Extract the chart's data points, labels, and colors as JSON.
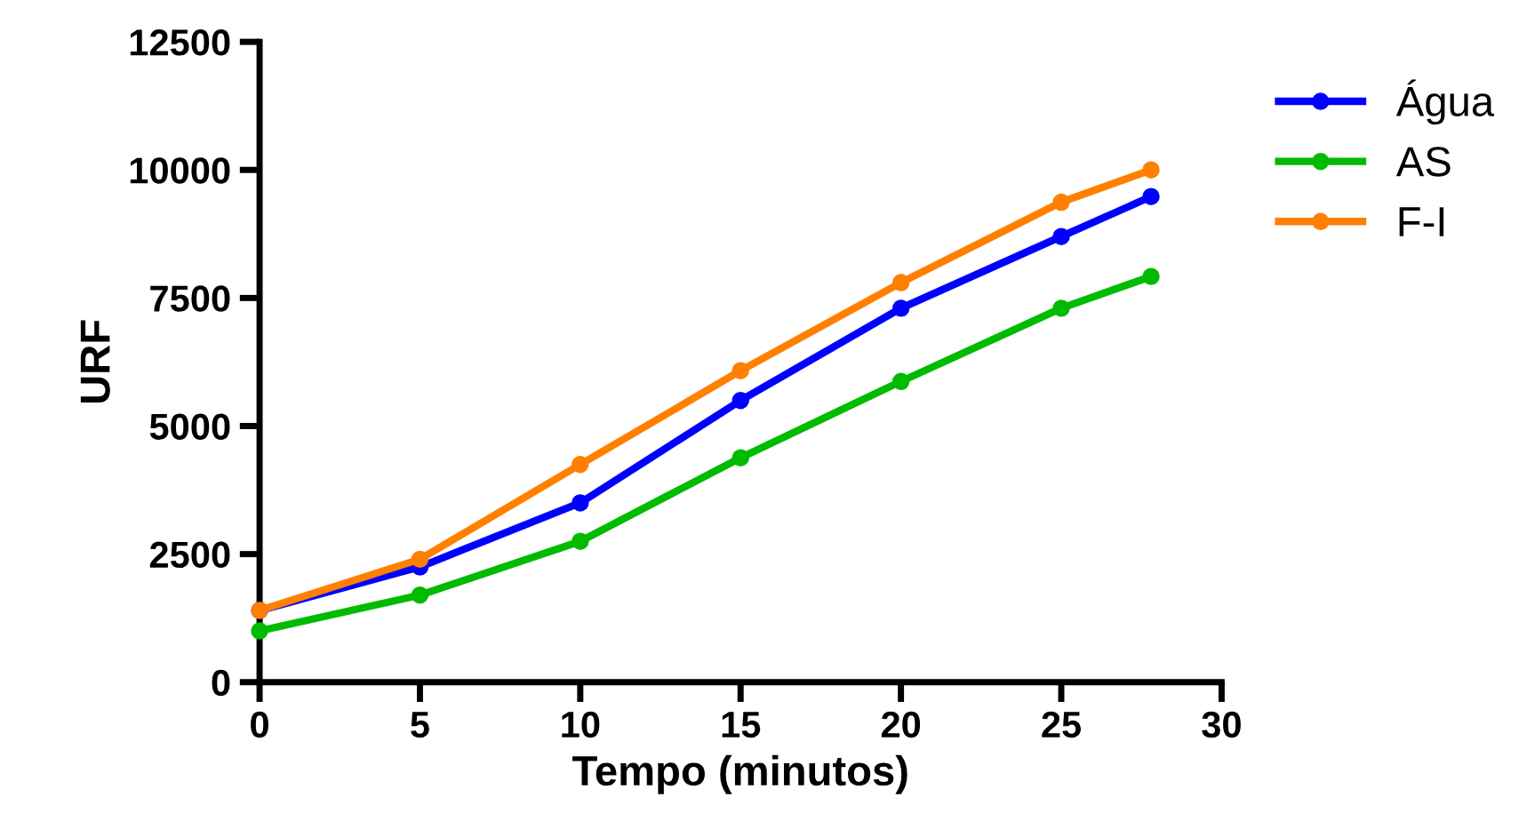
{
  "chart_data": {
    "type": "line",
    "xlabel": "Tempo (minutos)",
    "ylabel": "URF",
    "x": [
      0,
      5,
      10,
      15,
      20,
      25,
      27.8
    ],
    "series": [
      {
        "name": "Água",
        "color": "#0000ff",
        "values": [
          1400,
          2250,
          3500,
          5500,
          7300,
          8700,
          9480
        ]
      },
      {
        "name": "AS",
        "color": "#00bb00",
        "values": [
          1000,
          1700,
          2750,
          4380,
          5870,
          7300,
          7920
        ]
      },
      {
        "name": "F-I",
        "color": "#ff8000",
        "values": [
          1400,
          2400,
          4250,
          6080,
          7800,
          9370,
          10000
        ]
      }
    ],
    "xlim": [
      0,
      30
    ],
    "xticks": [
      0,
      5,
      10,
      15,
      20,
      25,
      30
    ],
    "ylim": [
      0,
      12500
    ],
    "yticks": [
      0,
      2500,
      5000,
      7500,
      10000,
      12500
    ],
    "grid": false,
    "legend": "top right",
    "marker": "circle",
    "line_style": "solid"
  }
}
